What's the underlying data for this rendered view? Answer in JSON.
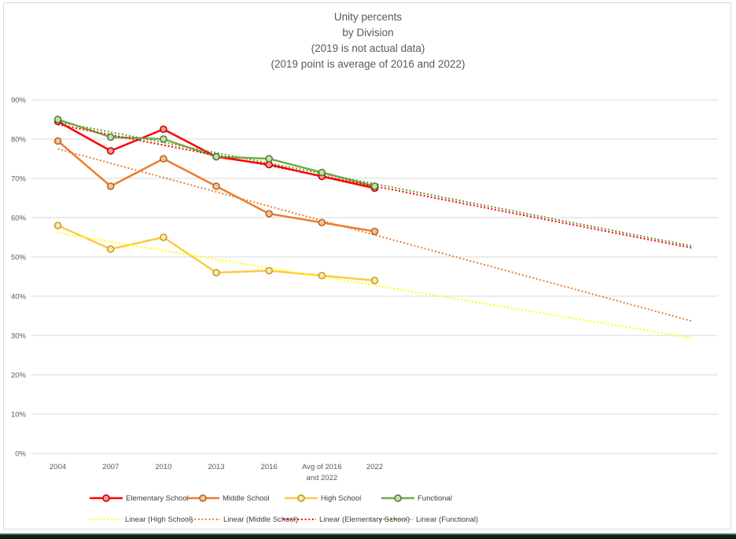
{
  "title": {
    "lines": [
      "Unity percents",
      "by Division",
      "(2019 is not actual data)",
      "(2019 point is average of 2016 and 2022)"
    ]
  },
  "chart_data": {
    "type": "line",
    "title": "Unity percents by Division (2019 is not actual data) (2019 point is average of 2016 and 2022)",
    "categories": [
      "2004",
      "2007",
      "2010",
      "2013",
      "2016",
      "Avg of 2016\nand 2022",
      "2022"
    ],
    "xlabel": "",
    "ylabel": "",
    "ylim": [
      0,
      90
    ],
    "y_ticks": [
      "0%",
      "10%",
      "20%",
      "30%",
      "40%",
      "50%",
      "60%",
      "70%",
      "80%",
      "90%"
    ],
    "grid": true,
    "legend_position": "bottom",
    "colors": {
      "grid": "#d9d9d9",
      "axis_text": "#595959",
      "title_text": "#595959",
      "legend_text": "#404040"
    },
    "series": [
      {
        "name": "Elementary School",
        "color": "#ff0000",
        "marker_fill": "#ff9696",
        "marker_stroke": "#c00000",
        "values": [
          84.5,
          77,
          82.5,
          75.5,
          73.5,
          70.5,
          67.5
        ]
      },
      {
        "name": "Middle School",
        "color": "#ed7d31",
        "marker_fill": "#f4c294",
        "marker_stroke": "#b8641e",
        "values": [
          79.5,
          68,
          75,
          68,
          61,
          58.75,
          56.5
        ]
      },
      {
        "name": "High School",
        "color": "#ffc846",
        "marker_fill": "#ffe9a8",
        "marker_stroke": "#c49a28",
        "values": [
          58,
          52,
          55,
          46,
          46.5,
          45.25,
          44
        ]
      },
      {
        "name": "Functional",
        "color": "#70ad47",
        "marker_fill": "#c4dfa9",
        "marker_stroke": "#507e33",
        "values": [
          85,
          80.5,
          80,
          75.5,
          75,
          71.5,
          68
        ]
      }
    ],
    "trendlines": [
      {
        "name": "Linear (High School)",
        "color": "#ffff00",
        "start": 56.1,
        "end": 29.4
      },
      {
        "name": "Linear (Middle School)",
        "color": "#ed7d31",
        "start": 77.5,
        "end": 33.7
      },
      {
        "name": "Linear (Elementary School)",
        "color": "#ff0000",
        "start": 83.7,
        "end": 52.3
      },
      {
        "name": "Linear (Functional)",
        "color": "#5f9e3c",
        "start": 84.4,
        "end": 52.8
      }
    ],
    "trendline_forecast_note": "trendlines extend 6 periods beyond 2022"
  },
  "legend": {
    "row1": [
      "Elementary School",
      "Middle School",
      "High School",
      "Functional"
    ],
    "row2": [
      "Linear (High School)",
      "Linear (Middle School)",
      "Linear (Elementary School)",
      "Linear (Functional)"
    ]
  }
}
